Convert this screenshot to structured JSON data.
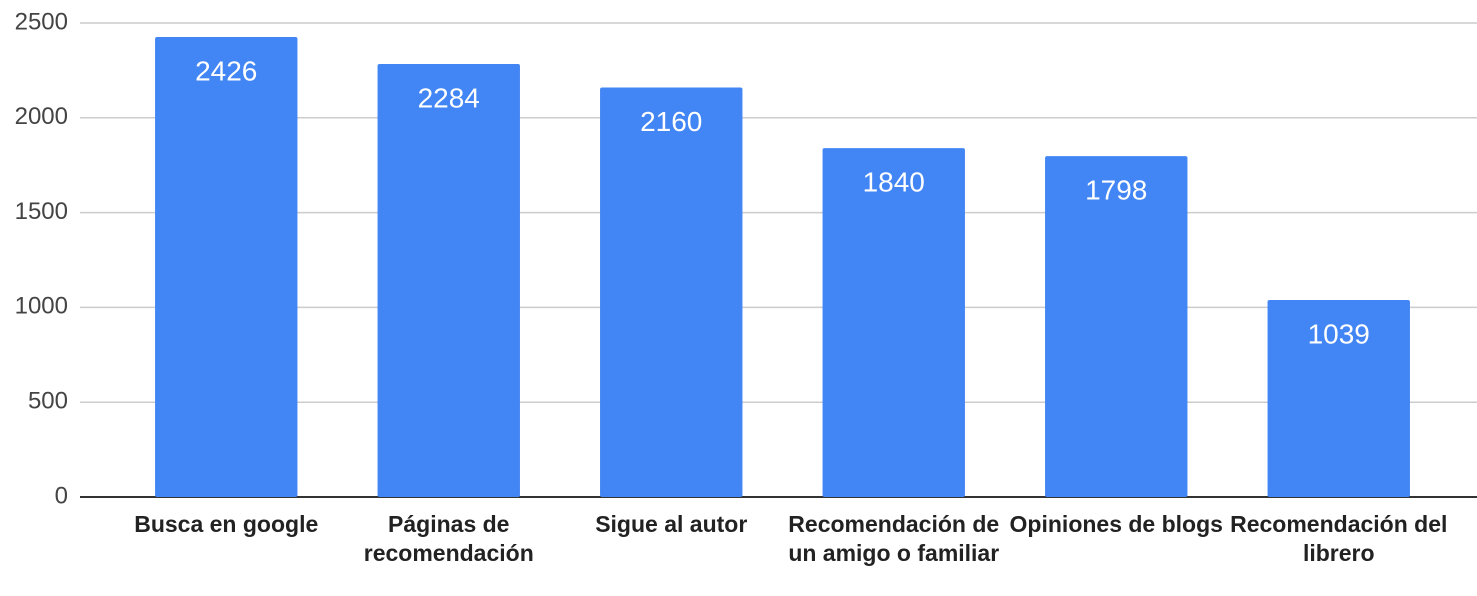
{
  "chart_data": {
    "type": "bar",
    "categories": [
      "Busca en google",
      "Páginas de recomendación",
      "Sigue al autor",
      "Recomendación de un amigo o familiar",
      "Opiniones de blogs",
      "Recomendación del librero"
    ],
    "values": [
      2426,
      2284,
      2160,
      1840,
      1798,
      1039
    ],
    "color": "#4285f4",
    "ylim": [
      0,
      2500
    ],
    "yticks": [
      0,
      500,
      1000,
      1500,
      2000,
      2500
    ],
    "grid": true
  }
}
